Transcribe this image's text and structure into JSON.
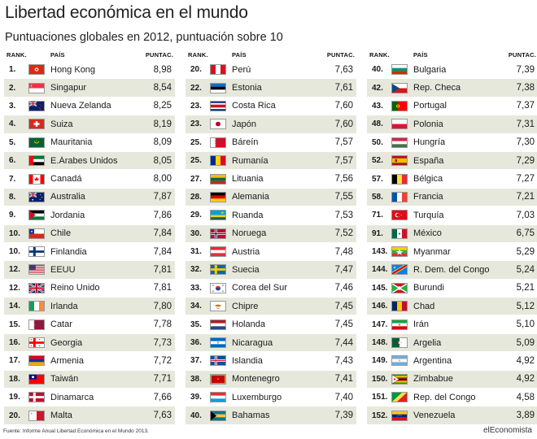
{
  "header": {
    "title": "Libertad económica en el mundo",
    "subtitle": "Puntuaciones globales en 2012, puntuación sobre 10"
  },
  "table_headers": {
    "rank": "RANK.",
    "country": "PAÍS",
    "score": "PUNTAC."
  },
  "footer": {
    "source": "Fuente: Informe Anual Libertad Económica en el Mundo 2013.",
    "brand": "elEconomista"
  },
  "colors": {
    "row_alt": "#e7e8dc",
    "row": "#ffffff",
    "text": "#1a1a1a"
  },
  "chart_data": {
    "type": "table",
    "title": "Libertad económica en el mundo",
    "subtitle": "Puntuaciones globales en 2012, puntuación sobre 10",
    "columns": [
      "RANK.",
      "PAÍS",
      "PUNTAC."
    ],
    "groups": [
      [
        {
          "rank": "1.",
          "country": "Hong Kong",
          "score": "8,98",
          "flag": "hongkong"
        },
        {
          "rank": "2.",
          "country": "Singapur",
          "score": "8,54",
          "flag": "singapore"
        },
        {
          "rank": "3.",
          "country": "Nueva Zelanda",
          "score": "8,25",
          "flag": "newzealand"
        },
        {
          "rank": "4.",
          "country": "Suiza",
          "score": "8,19",
          "flag": "switzerland"
        },
        {
          "rank": "5.",
          "country": "Mauritania",
          "score": "8,09",
          "flag": "mauritania"
        },
        {
          "rank": "6.",
          "country": "E.Árabes Unidos",
          "score": "8,05",
          "flag": "uae"
        },
        {
          "rank": "7.",
          "country": "Canadá",
          "score": "8,00",
          "flag": "canada"
        },
        {
          "rank": "8.",
          "country": "Australia",
          "score": "7,87",
          "flag": "australia"
        },
        {
          "rank": "9.",
          "country": "Jordania",
          "score": "7,86",
          "flag": "jordan"
        },
        {
          "rank": "10.",
          "country": "Chile",
          "score": "7,84",
          "flag": "chile"
        },
        {
          "rank": "10.",
          "country": "Finlandia",
          "score": "7,84",
          "flag": "finland"
        },
        {
          "rank": "12.",
          "country": "EEUU",
          "score": "7,81",
          "flag": "usa"
        },
        {
          "rank": "12.",
          "country": "Reino Unido",
          "score": "7,81",
          "flag": "uk"
        },
        {
          "rank": "14.",
          "country": "Irlanda",
          "score": "7,80",
          "flag": "ireland"
        },
        {
          "rank": "15.",
          "country": "Catar",
          "score": "7,78",
          "flag": "qatar"
        },
        {
          "rank": "16.",
          "country": "Georgia",
          "score": "7,73",
          "flag": "georgia"
        },
        {
          "rank": "17.",
          "country": "Armenia",
          "score": "7,72",
          "flag": "armenia"
        },
        {
          "rank": "18.",
          "country": "Taiwán",
          "score": "7,71",
          "flag": "taiwan"
        },
        {
          "rank": "19.",
          "country": "Dinamarca",
          "score": "7,66",
          "flag": "denmark"
        },
        {
          "rank": "20.",
          "country": "Malta",
          "score": "7,63",
          "flag": "malta"
        }
      ],
      [
        {
          "rank": "20.",
          "country": "Perú",
          "score": "7,63",
          "flag": "peru"
        },
        {
          "rank": "22.",
          "country": "Estonia",
          "score": "7,61",
          "flag": "estonia"
        },
        {
          "rank": "23.",
          "country": "Costa Rica",
          "score": "7,60",
          "flag": "costarica"
        },
        {
          "rank": "23.",
          "country": "Japón",
          "score": "7,60",
          "flag": "japan"
        },
        {
          "rank": "25.",
          "country": "Báreín",
          "score": "7,57",
          "flag": "bahrain"
        },
        {
          "rank": "25.",
          "country": "Rumanía",
          "score": "7,57",
          "flag": "romania"
        },
        {
          "rank": "27.",
          "country": "Lituania",
          "score": "7,56",
          "flag": "lithuania"
        },
        {
          "rank": "28.",
          "country": "Alemania",
          "score": "7,55",
          "flag": "germany"
        },
        {
          "rank": "29.",
          "country": "Ruanda",
          "score": "7,53",
          "flag": "rwanda"
        },
        {
          "rank": "30.",
          "country": "Noruega",
          "score": "7,52",
          "flag": "norway"
        },
        {
          "rank": "31.",
          "country": "Austria",
          "score": "7,48",
          "flag": "austria"
        },
        {
          "rank": "32.",
          "country": "Suecia",
          "score": "7,47",
          "flag": "sweden"
        },
        {
          "rank": "33.",
          "country": "Corea del Sur",
          "score": "7,46",
          "flag": "southkorea"
        },
        {
          "rank": "34.",
          "country": "Chipre",
          "score": "7,45",
          "flag": "cyprus"
        },
        {
          "rank": "35.",
          "country": "Holanda",
          "score": "7,45",
          "flag": "netherlands"
        },
        {
          "rank": "36.",
          "country": "Nicaragua",
          "score": "7,44",
          "flag": "nicaragua"
        },
        {
          "rank": "37.",
          "country": "Islandia",
          "score": "7,43",
          "flag": "iceland"
        },
        {
          "rank": "38.",
          "country": "Montenegro",
          "score": "7,41",
          "flag": "montenegro"
        },
        {
          "rank": "39.",
          "country": "Luxemburgo",
          "score": "7,40",
          "flag": "luxembourg"
        },
        {
          "rank": "40.",
          "country": "Bahamas",
          "score": "7,39",
          "flag": "bahamas"
        }
      ],
      [
        {
          "rank": "40.",
          "country": "Bulgaria",
          "score": "7,39",
          "flag": "bulgaria"
        },
        {
          "rank": "42.",
          "country": "Rep. Checa",
          "score": "7,38",
          "flag": "czech"
        },
        {
          "rank": "43.",
          "country": "Portugal",
          "score": "7,37",
          "flag": "portugal"
        },
        {
          "rank": "48.",
          "country": "Polonia",
          "score": "7,31",
          "flag": "poland"
        },
        {
          "rank": "50.",
          "country": "Hungría",
          "score": "7,30",
          "flag": "hungary"
        },
        {
          "rank": "52.",
          "country": "España",
          "score": "7,29",
          "flag": "spain"
        },
        {
          "rank": "57.",
          "country": "Bélgica",
          "score": "7,27",
          "flag": "belgium"
        },
        {
          "rank": "58.",
          "country": "Francia",
          "score": "7,21",
          "flag": "france"
        },
        {
          "rank": "71.",
          "country": "Turquía",
          "score": "7,03",
          "flag": "turkey"
        },
        {
          "rank": "91.",
          "country": "México",
          "score": "6,75",
          "flag": "mexico"
        },
        {
          "rank": "143.",
          "country": "Myanmar",
          "score": "5,29",
          "flag": "myanmar"
        },
        {
          "rank": "144.",
          "country": "R. Dem. del Congo",
          "score": "5,24",
          "flag": "drc"
        },
        {
          "rank": "145.",
          "country": "Burundi",
          "score": "5,21",
          "flag": "burundi"
        },
        {
          "rank": "146.",
          "country": "Chad",
          "score": "5,12",
          "flag": "chad"
        },
        {
          "rank": "147.",
          "country": "Irán",
          "score": "5,10",
          "flag": "iran"
        },
        {
          "rank": "148.",
          "country": "Argelia",
          "score": "5,09",
          "flag": "algeria"
        },
        {
          "rank": "149.",
          "country": "Argentina",
          "score": "4,92",
          "flag": "argentina"
        },
        {
          "rank": "150.",
          "country": "Zimbabue",
          "score": "4,92",
          "flag": "zimbabwe"
        },
        {
          "rank": "151.",
          "country": "Rep. del Congo",
          "score": "4,58",
          "flag": "congo"
        },
        {
          "rank": "152.",
          "country": "Venezuela",
          "score": "3,89",
          "flag": "venezuela"
        }
      ]
    ]
  }
}
